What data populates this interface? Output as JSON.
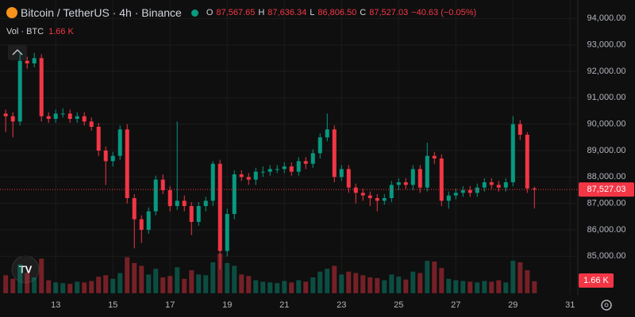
{
  "header": {
    "symbol": "Bitcoin / TetherUS · 4h · Binance",
    "o_label": "O",
    "o": "87,567.65",
    "h_label": "H",
    "h": "87,636.34",
    "l_label": "L",
    "l": "86,806.50",
    "c_label": "C",
    "c": "87,527.03",
    "change": "−40.63 (−0.05%)",
    "vol_label": "Vol · BTC",
    "vol": "1.66 K",
    "last_price": "87,527.03"
  },
  "chart_data": {
    "type": "candlestick",
    "up_color": "#089981",
    "down_color": "#f23645",
    "x": [
      11.25,
      11.5,
      11.75,
      12,
      12.25,
      12.5,
      12.75,
      13,
      13.25,
      13.5,
      13.75,
      14,
      14.25,
      14.5,
      14.75,
      15,
      15.25,
      15.5,
      15.75,
      16,
      16.25,
      16.5,
      16.75,
      17,
      17.25,
      17.5,
      17.75,
      18,
      18.25,
      18.5,
      18.75,
      19,
      19.25,
      19.5,
      19.75,
      20,
      20.25,
      20.5,
      20.75,
      21,
      21.25,
      21.5,
      21.75,
      22,
      22.25,
      22.5,
      22.75,
      23,
      23.25,
      23.5,
      23.75,
      24,
      24.25,
      24.5,
      24.75,
      25,
      25.25,
      25.5,
      25.75,
      26,
      26.25,
      26.5,
      26.75,
      27,
      27.25,
      27.5,
      27.75,
      28,
      28.25,
      28.5,
      28.75,
      29,
      29.25,
      29.5,
      29.75
    ],
    "open": [
      90400,
      90300,
      90100,
      92400,
      92300,
      92500,
      90300,
      90200,
      90400,
      90400,
      90200,
      90300,
      90100,
      89900,
      89000,
      88600,
      88800,
      89800,
      87200,
      86400,
      86000,
      86700,
      87900,
      87500,
      86900,
      87100,
      86900,
      86300,
      86900,
      87100,
      88500,
      85200,
      86600,
      88100,
      88000,
      87900,
      88200,
      88200,
      88300,
      88300,
      88400,
      88200,
      88600,
      88500,
      88900,
      89500,
      89800,
      88000,
      88300,
      87600,
      87400,
      87300,
      87200,
      87100,
      87200,
      87700,
      87800,
      87700,
      88300,
      87600,
      88800,
      88700,
      87100,
      87300,
      87400,
      87500,
      87400,
      87600,
      87800,
      87700,
      87600,
      87800,
      90000,
      89600,
      87567.65
    ],
    "high": [
      90550,
      90450,
      92700,
      92550,
      92700,
      92650,
      90450,
      90550,
      90600,
      90550,
      90450,
      90450,
      90250,
      90050,
      89150,
      88950,
      89950,
      90000,
      87350,
      86550,
      86850,
      88050,
      88100,
      87650,
      90100,
      87300,
      87050,
      87050,
      87250,
      88600,
      88650,
      86800,
      88250,
      88250,
      88150,
      88350,
      88400,
      88450,
      88450,
      88550,
      88550,
      88750,
      88750,
      89050,
      89650,
      90400,
      89950,
      88450,
      88450,
      87750,
      87550,
      87450,
      87350,
      87350,
      87850,
      87950,
      87950,
      88450,
      88450,
      89300,
      88950,
      88850,
      87450,
      87550,
      87650,
      87650,
      87750,
      87950,
      87950,
      87850,
      87950,
      90300,
      90150,
      89700,
      87636.34
    ],
    "low": [
      89700,
      89500,
      89950,
      92100,
      92150,
      90100,
      90050,
      90050,
      90250,
      90050,
      90050,
      89950,
      89750,
      88800,
      87700,
      88400,
      88650,
      87000,
      85300,
      85500,
      85850,
      86550,
      87350,
      86700,
      86750,
      86700,
      85800,
      86150,
      86700,
      86900,
      84500,
      85000,
      86400,
      87850,
      87700,
      87700,
      88000,
      88050,
      88150,
      88150,
      88050,
      88050,
      88300,
      88350,
      88700,
      89350,
      87800,
      87850,
      87400,
      87000,
      87100,
      86900,
      86700,
      86950,
      87050,
      87500,
      87550,
      87500,
      87400,
      87450,
      88500,
      86900,
      86800,
      87150,
      87250,
      87250,
      87250,
      87450,
      87550,
      87450,
      87450,
      87650,
      89400,
      87400,
      86806.5
    ],
    "close": [
      90300,
      90100,
      92400,
      92300,
      92500,
      90300,
      90200,
      90400,
      90400,
      90200,
      90300,
      90100,
      89900,
      89000,
      88600,
      88800,
      89800,
      87200,
      86400,
      86000,
      86700,
      87900,
      87500,
      86900,
      87100,
      86900,
      86300,
      86900,
      87100,
      88500,
      85200,
      86600,
      88100,
      88000,
      87900,
      88200,
      88200,
      88300,
      88300,
      88400,
      88200,
      88600,
      88500,
      88900,
      89500,
      89800,
      88000,
      88300,
      87600,
      87400,
      87300,
      87200,
      87100,
      87200,
      87700,
      87800,
      87700,
      88300,
      87600,
      88800,
      88700,
      87100,
      87300,
      87400,
      87500,
      87400,
      87600,
      87800,
      87700,
      87600,
      87800,
      90000,
      89600,
      87567.65,
      87527.03
    ],
    "volume": [
      2500,
      2000,
      4000,
      2800,
      2200,
      4800,
      1800,
      1500,
      1400,
      1300,
      1600,
      1500,
      1700,
      2300,
      2500,
      2000,
      2800,
      5000,
      4200,
      3800,
      2600,
      3400,
      2200,
      2400,
      3600,
      2000,
      3200,
      2600,
      2500,
      4300,
      5500,
      4200,
      3800,
      2600,
      2400,
      1800,
      1600,
      1500,
      1400,
      1700,
      1500,
      1800,
      1600,
      2200,
      3000,
      3400,
      3800,
      2600,
      3000,
      2800,
      2500,
      2200,
      2100,
      1800,
      2600,
      2300,
      1900,
      3000,
      2800,
      4500,
      4400,
      3500,
      2000,
      1800,
      1700,
      1600,
      1500,
      1700,
      1600,
      1800,
      1500,
      4500,
      4300,
      3200,
      1660
    ],
    "volume_lim": [
      0,
      6600
    ],
    "xlim": [
      11.05,
      31.27
    ],
    "xticks": [
      13,
      15,
      17,
      19,
      21,
      23,
      25,
      27,
      29,
      31
    ],
    "ylim": [
      83540,
      94700
    ],
    "yticks": [
      {
        "value": 85000,
        "label": "85,000.00"
      },
      {
        "value": 86000,
        "label": "86,000.00"
      },
      {
        "value": 87000,
        "label": "87,000.00"
      },
      {
        "value": 88000,
        "label": "88,000.00"
      },
      {
        "value": 89000,
        "label": "89,000.00"
      },
      {
        "value": 90000,
        "label": "90,000.00"
      },
      {
        "value": 91000,
        "label": "91,000.00"
      },
      {
        "value": 92000,
        "label": "92,000.00"
      },
      {
        "value": 93000,
        "label": "93,000.00"
      },
      {
        "value": 94000,
        "label": "94,000.00"
      }
    ],
    "grid": true
  }
}
